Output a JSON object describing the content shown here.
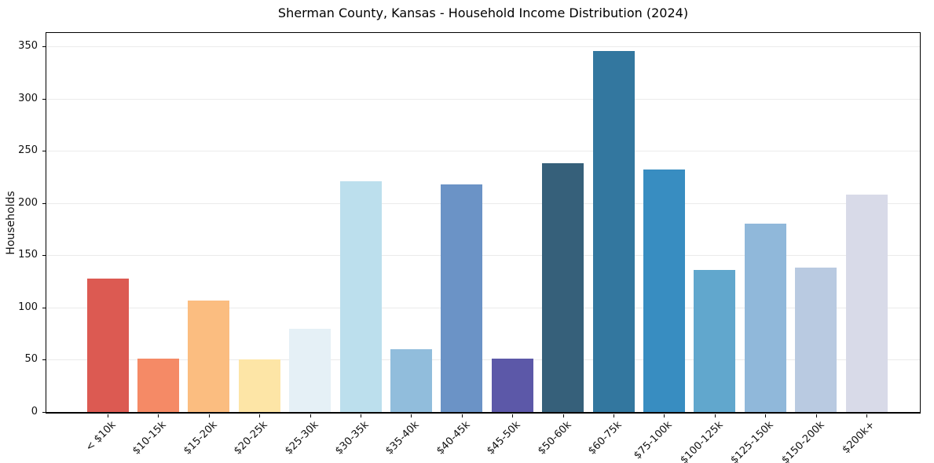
{
  "chart_data": {
    "type": "bar",
    "title": "Sherman County, Kansas - Household Income Distribution (2024)",
    "xlabel": "",
    "ylabel": "Households",
    "categories": [
      "< $10k",
      "$10-15k",
      "$15-20k",
      "$20-25k",
      "$25-30k",
      "$30-35k",
      "$35-40k",
      "$40-45k",
      "$45-50k",
      "$50-60k",
      "$60-75k",
      "$75-100k",
      "$100-125k",
      "$125-150k",
      "$150-200k",
      "$200k+"
    ],
    "values": [
      128,
      51,
      107,
      50,
      80,
      221,
      60,
      218,
      51,
      238,
      346,
      232,
      136,
      180,
      138,
      208
    ],
    "bar_colors": [
      "#dc5a52",
      "#f58a66",
      "#fbbd80",
      "#fde5a6",
      "#e5f0f6",
      "#bcdfed",
      "#91bddc",
      "#6b93c6",
      "#5c58a8",
      "#36607a",
      "#33779f",
      "#388dc1",
      "#61a7cd",
      "#90b8da",
      "#b9cae1",
      "#d8dae8"
    ],
    "yticks": [
      0,
      50,
      100,
      150,
      200,
      250,
      300,
      350
    ],
    "ylim": [
      0,
      363
    ],
    "grid": "horizontal",
    "gridline_color": "#ebebeb",
    "axis_color": "#000000",
    "legend": "none"
  }
}
